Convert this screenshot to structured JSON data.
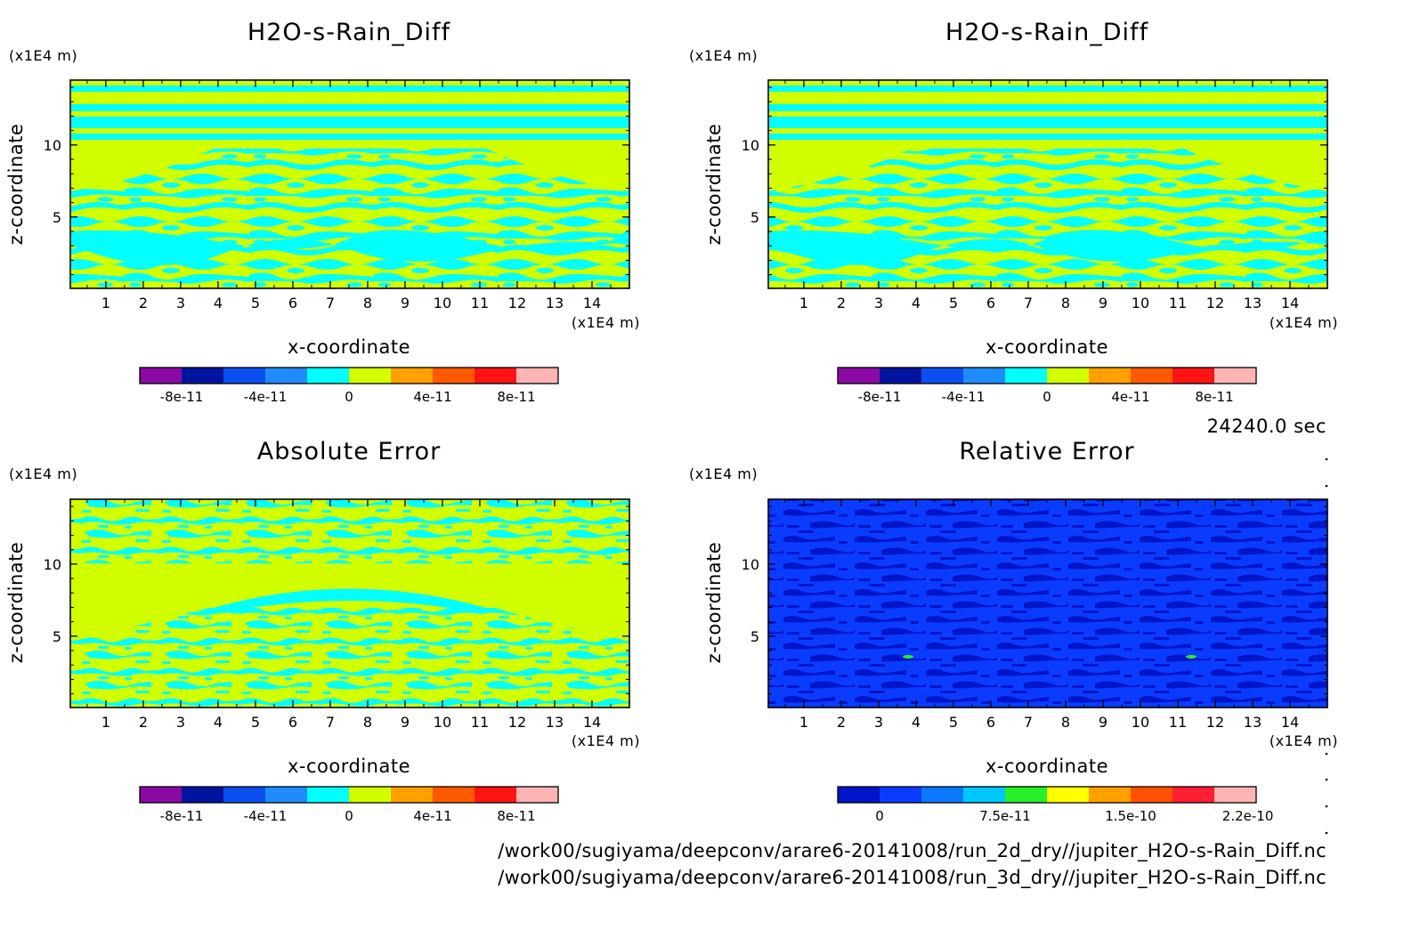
{
  "colors": {
    "diff_palette": [
      "#8b0aa5",
      "#0014a0",
      "#0a50f0",
      "#1e8cff",
      "#00ffff",
      "#d2ff00",
      "#ffa000",
      "#ff5a00",
      "#ff1414",
      "#ffb4b4"
    ],
    "rel_palette": [
      "#0014c8",
      "#0a3cff",
      "#0a78ff",
      "#00c8ff",
      "#28f028",
      "#ffff00",
      "#ffa000",
      "#ff5000",
      "#ff1e32",
      "#ffb4b4"
    ]
  },
  "panels": [
    {
      "title": "H2O-s-Rain_Diff",
      "ylabel": "z-coordinate",
      "xlabel": "x-coordinate",
      "y_unit": "(x1E4 m)",
      "x_unit": "(x1E4 m)",
      "x_ticks": [
        "1",
        "2",
        "3",
        "4",
        "5",
        "6",
        "7",
        "8",
        "9",
        "10",
        "11",
        "12",
        "13",
        "14"
      ],
      "y_ticks": [
        "5",
        "10"
      ],
      "colorbar_labels": [
        "-8e-11",
        "-4e-11",
        "0",
        "4e-11",
        "8e-11"
      ]
    },
    {
      "title": "H2O-s-Rain_Diff",
      "ylabel": "z-coordinate",
      "xlabel": "x-coordinate",
      "y_unit": "(x1E4 m)",
      "x_unit": "(x1E4 m)",
      "x_ticks": [
        "1",
        "2",
        "3",
        "4",
        "5",
        "6",
        "7",
        "8",
        "9",
        "10",
        "11",
        "12",
        "13",
        "14"
      ],
      "y_ticks": [
        "5",
        "10"
      ],
      "colorbar_labels": [
        "-8e-11",
        "-4e-11",
        "0",
        "4e-11",
        "8e-11"
      ]
    },
    {
      "title": "Absolute Error",
      "ylabel": "z-coordinate",
      "xlabel": "x-coordinate",
      "y_unit": "(x1E4 m)",
      "x_unit": "(x1E4 m)",
      "x_ticks": [
        "1",
        "2",
        "3",
        "4",
        "5",
        "6",
        "7",
        "8",
        "9",
        "10",
        "11",
        "12",
        "13",
        "14"
      ],
      "y_ticks": [
        "5",
        "10"
      ],
      "colorbar_labels": [
        "-8e-11",
        "-4e-11",
        "0",
        "4e-11",
        "8e-11"
      ]
    },
    {
      "title": "Relative Error",
      "ylabel": "z-coordinate",
      "xlabel": "x-coordinate",
      "y_unit": "(x1E4 m)",
      "x_unit": "(x1E4 m)",
      "x_ticks": [
        "1",
        "2",
        "3",
        "4",
        "5",
        "6",
        "7",
        "8",
        "9",
        "10",
        "11",
        "12",
        "13",
        "14"
      ],
      "y_ticks": [
        "5",
        "10"
      ],
      "colorbar_labels": [
        "0",
        "7.5e-11",
        "1.5e-10",
        "2.2e-10"
      ]
    }
  ],
  "time_label": "24240.0 sec",
  "files": [
    "/work00/sugiyama/deepconv/arare6-20141008/run_2d_dry//jupiter_H2O-s-Rain_Diff.nc",
    "/work00/sugiyama/deepconv/arare6-20141008/run_3d_dry//jupiter_H2O-s-Rain_Diff.nc"
  ],
  "chart_data": [
    {
      "type": "heatmap",
      "title": "H2O-s-Rain_Diff",
      "xlabel": "x-coordinate",
      "ylabel": "z-coordinate",
      "x_unit": "(x1E4 m)",
      "y_unit": "(x1E4 m)",
      "xlim": [
        0.05,
        15.0
      ],
      "ylim": [
        0.05,
        14.5
      ],
      "x_ticks": [
        1,
        2,
        3,
        4,
        5,
        6,
        7,
        8,
        9,
        10,
        11,
        12,
        13,
        14
      ],
      "y_ticks": [
        5,
        10
      ],
      "colorbar": {
        "levels": [
          -1e-10,
          -8e-11,
          -6e-11,
          -4e-11,
          -2e-11,
          0,
          2e-11,
          4e-11,
          6e-11,
          8e-11,
          1e-10
        ],
        "tick_values": [
          -8e-11,
          -4e-11,
          0,
          4e-11,
          8e-11
        ]
      },
      "dominant_categories": [
        "0 to 2e-11",
        "-2e-11 to 0"
      ]
    },
    {
      "type": "heatmap",
      "title": "H2O-s-Rain_Diff",
      "xlabel": "x-coordinate",
      "ylabel": "z-coordinate",
      "x_unit": "(x1E4 m)",
      "y_unit": "(x1E4 m)",
      "xlim": [
        0.05,
        15.0
      ],
      "ylim": [
        0.05,
        14.5
      ],
      "x_ticks": [
        1,
        2,
        3,
        4,
        5,
        6,
        7,
        8,
        9,
        10,
        11,
        12,
        13,
        14
      ],
      "y_ticks": [
        5,
        10
      ],
      "colorbar": {
        "levels": [
          -1e-10,
          -8e-11,
          -6e-11,
          -4e-11,
          -2e-11,
          0,
          2e-11,
          4e-11,
          6e-11,
          8e-11,
          1e-10
        ],
        "tick_values": [
          -8e-11,
          -4e-11,
          0,
          4e-11,
          8e-11
        ]
      },
      "dominant_categories": [
        "0 to 2e-11",
        "-2e-11 to 0"
      ]
    },
    {
      "type": "heatmap",
      "title": "Absolute Error",
      "xlabel": "x-coordinate",
      "ylabel": "z-coordinate",
      "x_unit": "(x1E4 m)",
      "y_unit": "(x1E4 m)",
      "xlim": [
        0.05,
        15.0
      ],
      "ylim": [
        0.05,
        14.5
      ],
      "x_ticks": [
        1,
        2,
        3,
        4,
        5,
        6,
        7,
        8,
        9,
        10,
        11,
        12,
        13,
        14
      ],
      "y_ticks": [
        5,
        10
      ],
      "colorbar": {
        "levels": [
          -1e-10,
          -8e-11,
          -6e-11,
          -4e-11,
          -2e-11,
          0,
          2e-11,
          4e-11,
          6e-11,
          8e-11,
          1e-10
        ],
        "tick_values": [
          -8e-11,
          -4e-11,
          0,
          4e-11,
          8e-11
        ]
      },
      "dominant_categories": [
        "0 to 2e-11",
        "-2e-11 to 0"
      ]
    },
    {
      "type": "heatmap",
      "title": "Relative Error",
      "xlabel": "x-coordinate",
      "ylabel": "z-coordinate",
      "x_unit": "(x1E4 m)",
      "y_unit": "(x1E4 m)",
      "xlim": [
        0.05,
        15.0
      ],
      "ylim": [
        0.05,
        14.5
      ],
      "x_ticks": [
        1,
        2,
        3,
        4,
        5,
        6,
        7,
        8,
        9,
        10,
        11,
        12,
        13,
        14
      ],
      "y_ticks": [
        5,
        10
      ],
      "colorbar": {
        "levels": [
          -2.5e-11,
          0,
          2.5e-11,
          5e-11,
          7.5e-11,
          1e-10,
          1.25e-10,
          1.5e-10,
          1.75e-10,
          2e-10,
          2.25e-10
        ],
        "tick_values": [
          0,
          7.5e-11,
          1.5e-10,
          2.2e-10
        ]
      },
      "dominant_categories": [
        "0 to 2.5e-11",
        "-2.5e-11 to 0"
      ]
    }
  ]
}
